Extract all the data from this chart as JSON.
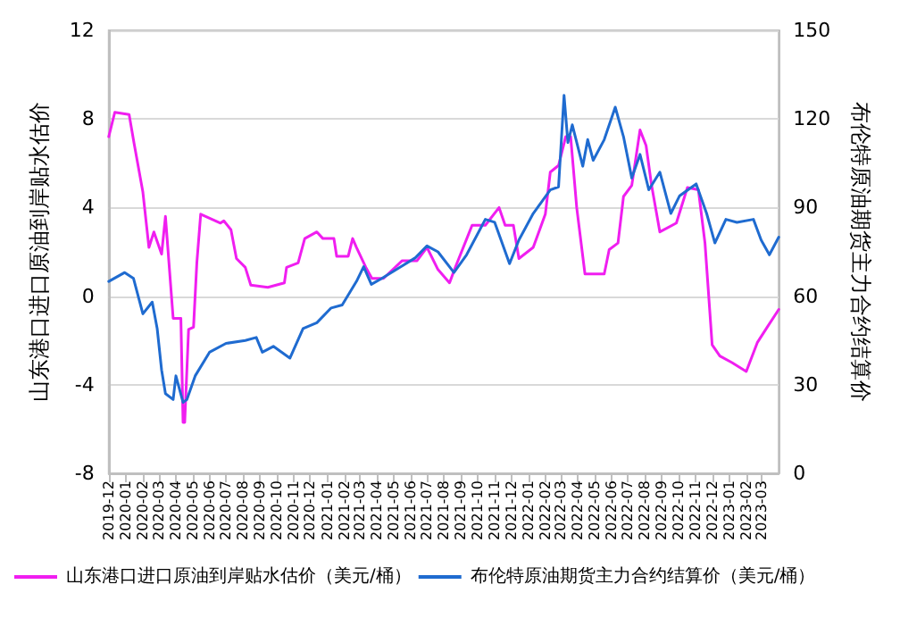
{
  "chart_data": {
    "type": "line",
    "ylabel": "山东港口进口原油到岸贴水估价",
    "y2label": "布伦特原油期货主力合约结算价",
    "xlim": [
      "2019-12-01",
      "2023-04-01"
    ],
    "xticks": [
      "2019-12",
      "2020-01",
      "2020-02",
      "2020-03",
      "2020-04",
      "2020-05",
      "2020-06",
      "2020-07",
      "2020-08",
      "2020-09",
      "2020-10",
      "2020-11",
      "2020-12",
      "2021-01",
      "2021-02",
      "2021-03",
      "2021-04",
      "2021-05",
      "2021-06",
      "2021-07",
      "2021-08",
      "2021-09",
      "2021-10",
      "2021-11",
      "2021-12",
      "2022-01",
      "2022-02",
      "2022-03",
      "2022-04",
      "2022-05",
      "2022-06",
      "2022-07",
      "2022-08",
      "2022-09",
      "2022-10",
      "2022-11",
      "2022-12",
      "2023-01",
      "2023-02",
      "2023-03"
    ],
    "ylim": [
      -8,
      12
    ],
    "yticks": [
      -8,
      -4,
      0,
      4,
      8,
      12
    ],
    "y2lim": [
      0,
      150
    ],
    "y2ticks": [
      0,
      30,
      60,
      90,
      120,
      150
    ],
    "grid": "y",
    "legend": "bottom",
    "marker": "none",
    "line_style": "solid",
    "series": [
      {
        "name": "山东港口进口原油到岸贴水估价（美元/桶）",
        "color": "#f01ef0",
        "x": [
          "2019-12-01",
          "2019-12-12",
          "2020-01-07",
          "2020-01-16",
          "2020-02-01",
          "2020-02-12",
          "2020-02-21",
          "2020-03-06",
          "2020-03-13",
          "2020-03-27",
          "2020-04-10",
          "2020-04-14",
          "2020-04-17",
          "2020-04-24",
          "2020-05-03",
          "2020-05-09",
          "2020-05-16",
          "2020-06-21",
          "2020-06-27",
          "2020-07-10",
          "2020-07-20",
          "2020-08-05",
          "2020-08-15",
          "2020-09-15",
          "2020-10-15",
          "2020-10-19",
          "2020-11-09",
          "2020-11-21",
          "2020-12-13",
          "2020-12-24",
          "2021-01-13",
          "2021-01-18",
          "2021-02-08",
          "2021-02-16",
          "2021-02-23",
          "2021-03-12",
          "2021-03-23",
          "2021-04-13",
          "2021-05-17",
          "2021-06-13",
          "2021-07-01",
          "2021-07-21",
          "2021-08-11",
          "2021-08-20",
          "2021-09-21",
          "2021-10-15",
          "2021-11-09",
          "2021-11-20",
          "2021-12-05",
          "2021-12-15",
          "2022-01-10",
          "2022-02-01",
          "2022-02-10",
          "2022-02-25",
          "2022-03-10",
          "2022-03-19",
          "2022-03-30",
          "2022-04-14",
          "2022-05-19",
          "2022-05-28",
          "2022-06-13",
          "2022-06-23",
          "2022-07-08",
          "2022-07-23",
          "2022-08-03",
          "2022-08-13",
          "2022-08-28",
          "2022-09-27",
          "2022-10-17",
          "2022-11-06",
          "2022-11-18",
          "2022-12-01",
          "2022-12-15",
          "2023-01-06",
          "2023-02-01",
          "2023-02-21",
          "2023-03-11",
          "2023-04-01"
        ],
        "values": [
          7.2,
          8.3,
          8.2,
          6.9,
          4.7,
          2.2,
          2.9,
          1.9,
          3.6,
          -1,
          -1,
          -5.7,
          -5.7,
          -1.5,
          -1.4,
          1.5,
          3.7,
          3.3,
          3.4,
          3,
          1.7,
          1.3,
          0.5,
          0.4,
          0.6,
          1.3,
          1.5,
          2.6,
          2.9,
          2.6,
          2.6,
          1.8,
          1.8,
          2.6,
          2.2,
          1.3,
          0.8,
          0.8,
          1.6,
          1.6,
          2.2,
          1.2,
          0.6,
          1.2,
          3.2,
          3.2,
          4,
          3.2,
          3.2,
          1.7,
          2.2,
          3.7,
          5.6,
          5.9,
          7.2,
          7.2,
          4,
          1,
          1,
          2.1,
          2.4,
          4.5,
          5,
          7.5,
          6.8,
          5,
          2.9,
          3.3,
          4.9,
          4.8,
          2.4,
          -2.2,
          -2.7,
          -3,
          -3.4,
          -2.1,
          -1.4,
          -0.6
        ]
      },
      {
        "name": "布伦特原油期货主力合约结算价（美元/桶）",
        "color": "#1f6bd0",
        "axis": "y2",
        "x": [
          "2019-12-01",
          "2019-12-30",
          "2020-01-15",
          "2020-02-01",
          "2020-02-18",
          "2020-02-27",
          "2020-03-06",
          "2020-03-13",
          "2020-03-27",
          "2020-04-01",
          "2020-04-14",
          "2020-04-21",
          "2020-05-06",
          "2020-06-01",
          "2020-07-01",
          "2020-08-05",
          "2020-08-25",
          "2020-09-05",
          "2020-09-25",
          "2020-10-25",
          "2020-11-18",
          "2020-12-13",
          "2021-01-08",
          "2021-01-28",
          "2021-02-23",
          "2021-03-08",
          "2021-03-22",
          "2021-04-10",
          "2021-05-15",
          "2021-06-10",
          "2021-07-01",
          "2021-07-21",
          "2021-08-19",
          "2021-09-11",
          "2021-10-15",
          "2021-11-01",
          "2021-11-28",
          "2021-12-15",
          "2022-01-10",
          "2022-02-10",
          "2022-02-25",
          "2022-03-07",
          "2022-03-14",
          "2022-03-22",
          "2022-04-10",
          "2022-04-19",
          "2022-04-29",
          "2022-05-19",
          "2022-06-08",
          "2022-06-23",
          "2022-07-08",
          "2022-07-23",
          "2022-08-08",
          "2022-08-28",
          "2022-09-17",
          "2022-10-03",
          "2022-11-02",
          "2022-11-21",
          "2022-12-06",
          "2022-12-26",
          "2023-01-15",
          "2023-02-14",
          "2023-02-28",
          "2023-03-15",
          "2023-04-01"
        ],
        "values": [
          65,
          68,
          66,
          54,
          58,
          49,
          35,
          27,
          25,
          33,
          24,
          25,
          33,
          41,
          44,
          45,
          46,
          41,
          43,
          39,
          49,
          51,
          56,
          57,
          65,
          70,
          64,
          66,
          70,
          73,
          77,
          75,
          68,
          74,
          86,
          85,
          71,
          79,
          88,
          96,
          97,
          128,
          112,
          118,
          104,
          113,
          106,
          113,
          124,
          114,
          100,
          108,
          96,
          102,
          88,
          94,
          98,
          88,
          78,
          86,
          85,
          86,
          79,
          74,
          80
        ]
      }
    ]
  }
}
